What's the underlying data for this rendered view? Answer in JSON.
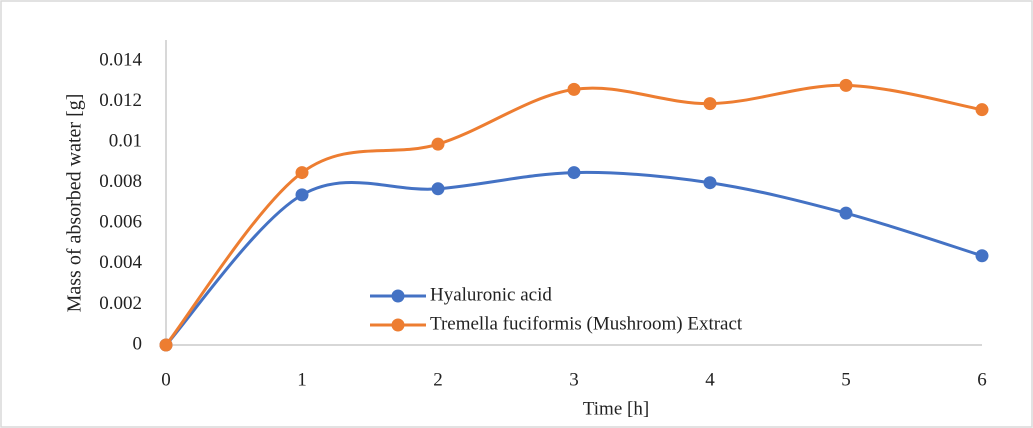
{
  "chart_data": {
    "type": "line",
    "x_label": "Time [h]",
    "y_label": "Mass of absorbed water [g]",
    "x": [
      0,
      1,
      2,
      3,
      4,
      5,
      6
    ],
    "series": [
      {
        "name": "Hyaluronic acid",
        "color": "#4472c4",
        "values": [
          0,
          0.0074,
          0.0077,
          0.0085,
          0.008,
          0.0065,
          0.0044
        ]
      },
      {
        "name": "Tremella fuciformis (Mushroom) Extract",
        "color": "#ed7d31",
        "values": [
          0,
          0.0085,
          0.0099,
          0.0126,
          0.0119,
          0.0128,
          0.0116
        ]
      }
    ],
    "xlim": [
      0,
      6
    ],
    "xticks": [
      0,
      1,
      2,
      3,
      4,
      5,
      6
    ],
    "ylim": [
      0,
      0.014
    ],
    "yticks": [
      0,
      0.002,
      0.004,
      0.006,
      0.008,
      0.01,
      0.012,
      0.014
    ],
    "grid": false,
    "smooth": true,
    "legend": "lower center"
  }
}
